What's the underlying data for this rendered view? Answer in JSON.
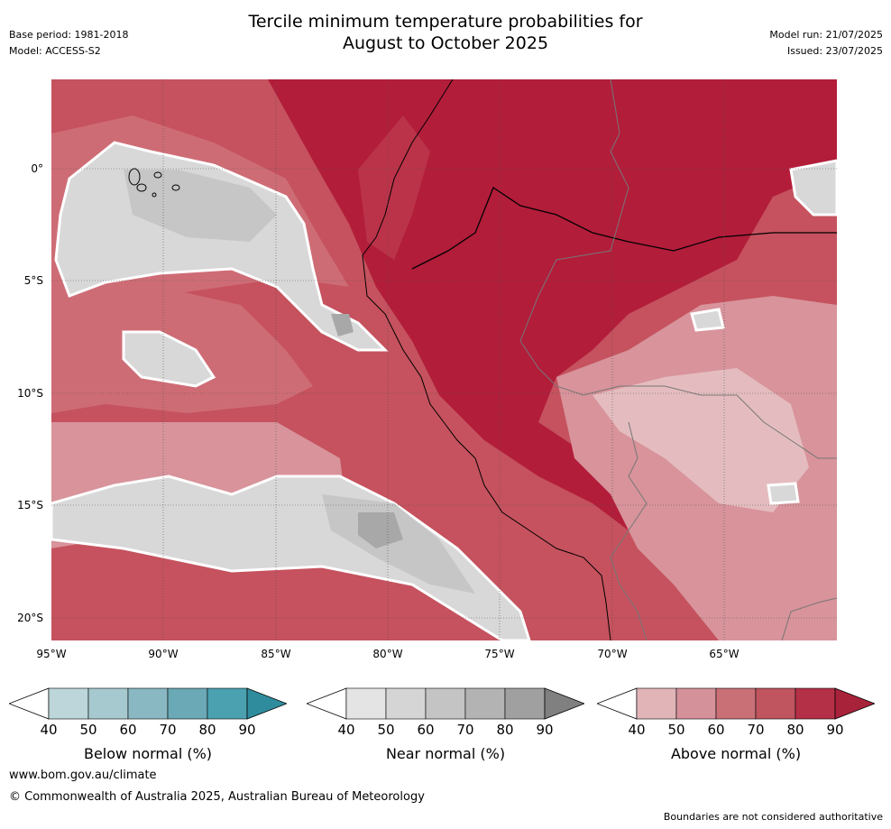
{
  "title_line1": "Tercile minimum temperature probabilities for",
  "title_line2": "August to October 2025",
  "base_period": "Base period: 1981-2018",
  "model": "Model: ACCESS-S2",
  "model_run": "Model run: 21/07/2025",
  "issued": "Issued: 23/07/2025",
  "lat_labels": [
    "0°",
    "5°S",
    "10°S",
    "15°S",
    "20°S"
  ],
  "lon_labels": [
    "95°W",
    "90°W",
    "85°W",
    "80°W",
    "75°W",
    "70°W",
    "65°W"
  ],
  "colorbars": {
    "below": {
      "label": "Below normal (%)",
      "ticks": [
        "40",
        "50",
        "60",
        "70",
        "80",
        "90"
      ],
      "colors": [
        "#ffffff",
        "#bcd6da",
        "#a5c9cf",
        "#89b8c2",
        "#6aa9b5",
        "#4ba1b0",
        "#2f8c9d"
      ]
    },
    "near": {
      "label": "Near normal (%)",
      "ticks": [
        "40",
        "50",
        "60",
        "70",
        "80",
        "90"
      ],
      "colors": [
        "#ffffff",
        "#e4e4e4",
        "#d5d5d5",
        "#c4c4c4",
        "#b3b3b3",
        "#a0a0a0",
        "#808080"
      ]
    },
    "above": {
      "label": "Above normal (%)",
      "ticks": [
        "40",
        "50",
        "60",
        "70",
        "80",
        "90"
      ],
      "colors": [
        "#ffffff",
        "#e1b4b8",
        "#d5919a",
        "#c97077",
        "#c05560",
        "#b43046",
        "#a8223a"
      ]
    }
  },
  "website": "www.bom.gov.au/climate",
  "copyright": "© Commonwealth of Australia 2025, Australian Bureau of Meteorology",
  "disclaimer": "Boundaries are not considered authoritative",
  "map_colors": {
    "above_90": "#b21d3a",
    "above_80": "#bb3349",
    "above_70": "#c5525e",
    "above_60": "#ce6c75",
    "above_50": "#d8939b",
    "above_40": "#e4bcbf",
    "near_50": "#d8d8d8",
    "near_60": "#c6c6c6",
    "near_70": "#a8a8a8"
  }
}
